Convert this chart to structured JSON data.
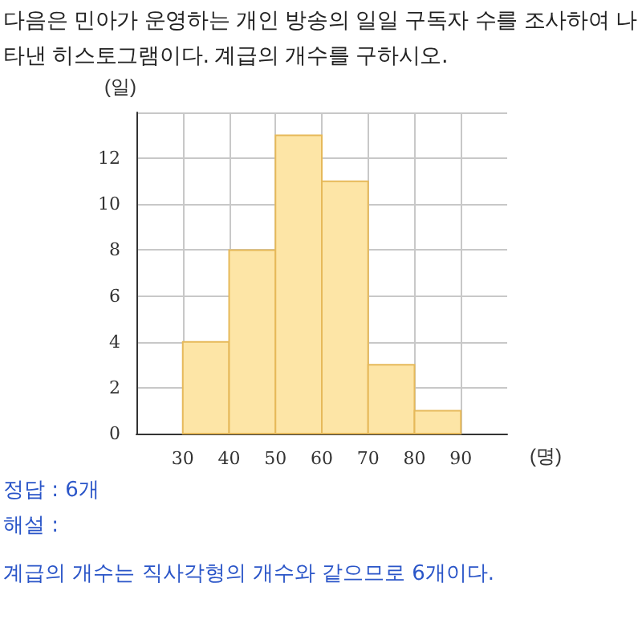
{
  "chart_data": {
    "type": "histogram",
    "title": "다음은 민아가 운영하는 개인 방송의 일일 구독자 수를 조사하여 나타낸 히스토그램이다. 계급의 개수를 구하시오.",
    "xlabel": "(명)",
    "ylabel": "(일)",
    "bins": [
      30,
      40,
      50,
      60,
      70,
      80,
      90
    ],
    "values": [
      4,
      8,
      13,
      11,
      3,
      1
    ],
    "color": "#fde5a6",
    "xlim": [
      20,
      100
    ],
    "xticks": [
      30,
      40,
      50,
      60,
      70,
      80,
      90
    ],
    "ylim": [
      0,
      14
    ],
    "yticks": [
      0,
      2,
      4,
      6,
      8,
      10,
      12,
      {
        "value": 14,
        "label": null
      }
    ],
    "grid": true,
    "annotations": [
      "정답 : 6개",
      "해설 :",
      "계급의 개수는 직사각형의 개수와 같으므로 6개이다."
    ]
  }
}
